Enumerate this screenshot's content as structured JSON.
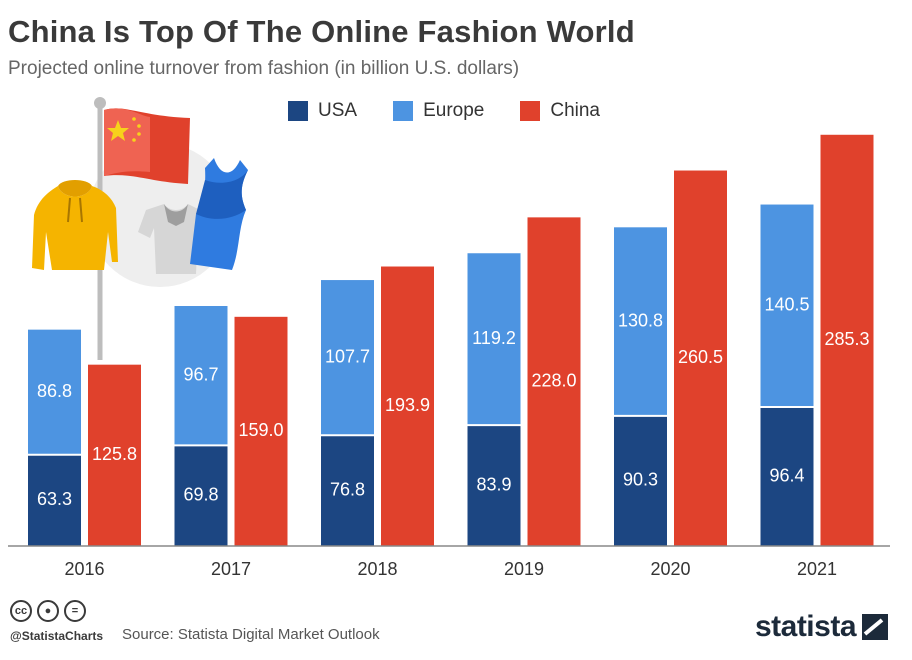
{
  "header": {
    "title": "China Is Top Of The Online Fashion World",
    "subtitle": "Projected online turnover from fashion (in billion U.S. dollars)"
  },
  "chart_data": {
    "type": "bar",
    "stacked_groups": true,
    "categories": [
      "2016",
      "2017",
      "2018",
      "2019",
      "2020",
      "2021"
    ],
    "series": [
      {
        "name": "USA",
        "values": [
          63.3,
          69.8,
          76.8,
          83.9,
          90.3,
          96.4
        ],
        "color": "#1c4682",
        "stack": "west"
      },
      {
        "name": "Europe",
        "values": [
          86.8,
          96.7,
          107.7,
          119.2,
          130.8,
          140.5
        ],
        "color": "#4d94e1",
        "stack": "west"
      },
      {
        "name": "China",
        "values": [
          125.8,
          159.0,
          193.9,
          228.0,
          260.5,
          285.3
        ],
        "color": "#e0412c",
        "stack": "china"
      }
    ],
    "legend_position": "top-center",
    "grid": false
  },
  "footer": {
    "cc_icons": [
      "cc",
      "by",
      "nd"
    ],
    "handle": "@StatistaCharts",
    "source": "Source: Statista Digital Market Outlook",
    "brand": "statista"
  }
}
